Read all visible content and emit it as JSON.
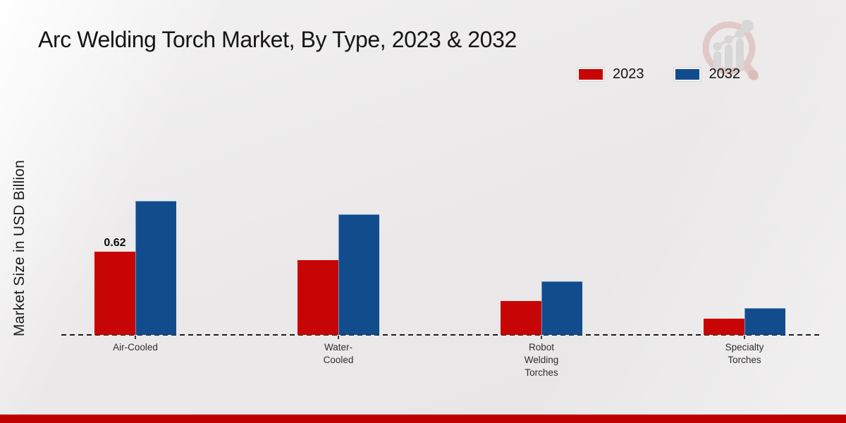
{
  "title": "Arc Welding Torch Market, By Type, 2023 & 2032",
  "y_axis_label": "Market Size in USD Billion",
  "legend": {
    "items": [
      {
        "label": "2023",
        "color": "#c80505"
      },
      {
        "label": "2032",
        "color": "#114c8c"
      }
    ]
  },
  "watermark_icon": "magnifier-bar-chart-logo",
  "colors": {
    "series_2023": "#c80505",
    "series_2032": "#114c8c",
    "footer_stripe": "#c00000",
    "baseline": "#1d1d1d"
  },
  "chart_data": {
    "type": "bar",
    "title": "Arc Welding Torch Market, By Type, 2023 & 2032",
    "xlabel": "",
    "ylabel": "Market Size in USD Billion",
    "categories": [
      "Air-Cooled",
      "Water-\nCooled",
      "Robot\nWelding\nTorches",
      "Specialty\nTorches"
    ],
    "series": [
      {
        "name": "2023",
        "color": "#c80505",
        "values": [
          0.62,
          0.56,
          0.25,
          0.12
        ]
      },
      {
        "name": "2032",
        "color": "#114c8c",
        "values": [
          1.0,
          0.9,
          0.4,
          0.2
        ]
      }
    ],
    "annotations": [
      {
        "series_index": 0,
        "category_index": 0,
        "text": "0.62"
      }
    ],
    "ylim": [
      0,
      1.05
    ],
    "grid": false,
    "legend_position": "top-right",
    "baseline_style": "dashed",
    "y_axis_ticks_visible": false
  }
}
